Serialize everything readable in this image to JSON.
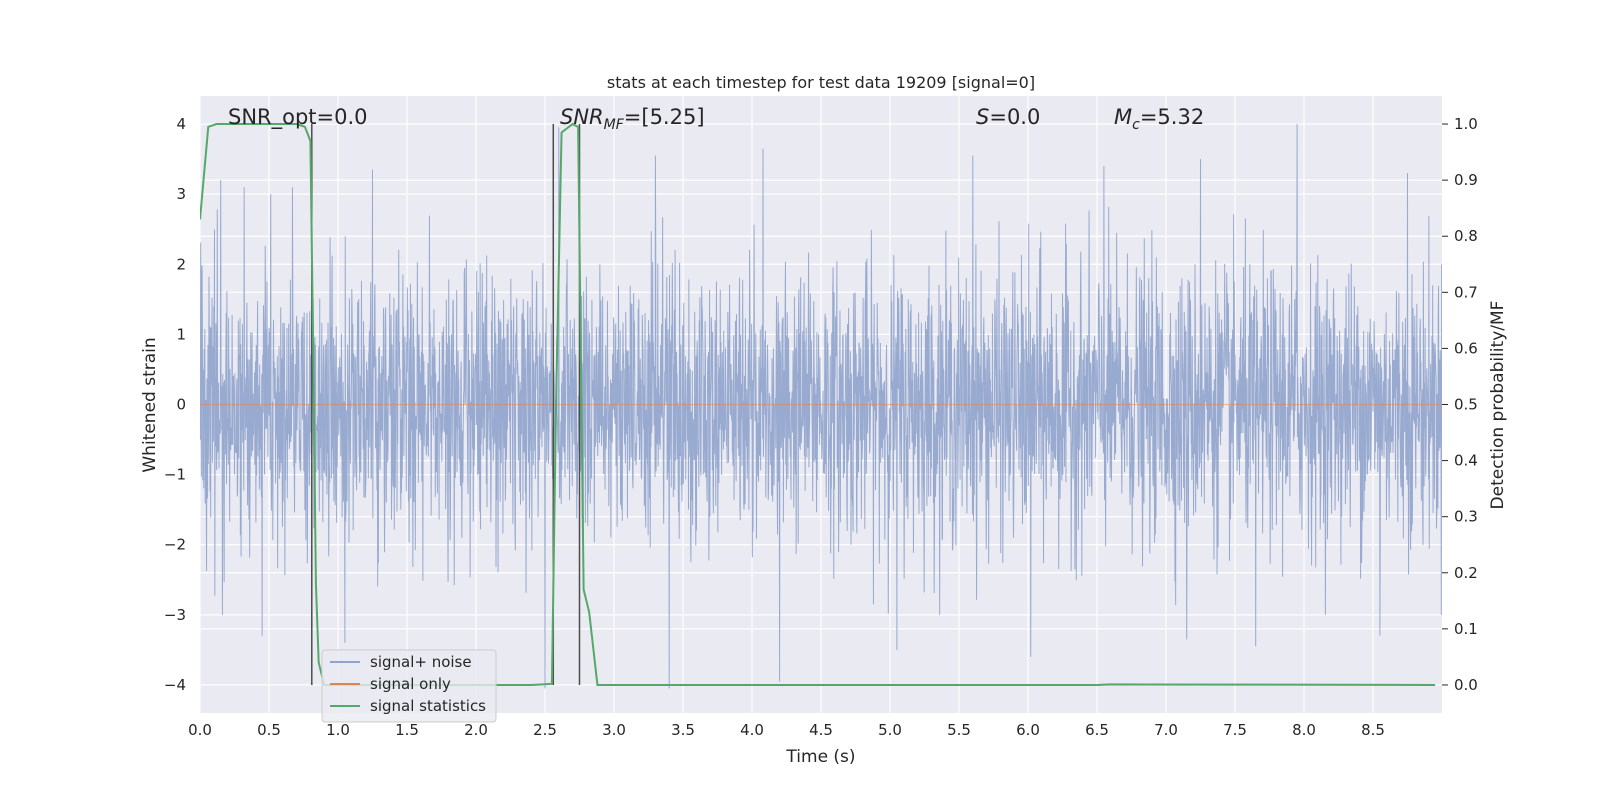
{
  "chart_data": {
    "type": "line",
    "title": "stats at each timestep for test data 19209 [signal=0]",
    "xlabel": "Time (s)",
    "ylabel": "Whitened strain",
    "y2label": "Detection probability/MF",
    "xlim": [
      0.0,
      9.0
    ],
    "ylim": [
      -4.4,
      4.4
    ],
    "y2lim": [
      -0.05,
      1.05
    ],
    "xticks": [
      "0.0",
      "0.5",
      "1.0",
      "1.5",
      "2.0",
      "2.5",
      "3.0",
      "3.5",
      "4.0",
      "4.5",
      "5.0",
      "5.5",
      "6.0",
      "6.5",
      "7.0",
      "7.5",
      "8.0",
      "8.5"
    ],
    "yticks": [
      "4",
      "3",
      "2",
      "1",
      "0",
      "−1",
      "−2",
      "−3",
      "−4"
    ],
    "y2ticks": [
      "1.0",
      "0.9",
      "0.8",
      "0.7",
      "0.6",
      "0.5",
      "0.4",
      "0.3",
      "0.2",
      "0.1",
      "0.0"
    ],
    "grid": true,
    "legend_position": "lower-left",
    "annotations": {
      "snr_opt": "SNR_opt=0.0",
      "snr_mf_main": "SNR",
      "snr_mf_sub": "MF",
      "snr_mf_value": "=[5.25]",
      "s_main": "S",
      "s_value": "=0.0",
      "mc_main": "M",
      "mc_sub": "c",
      "mc_value": "=5.32"
    },
    "series": [
      {
        "name": "signal+ noise",
        "color": "#8fa3cc",
        "description": "whitened strain noise, random, amplitude roughly within [-4, 4]",
        "typical_band": [
          -2.0,
          2.0
        ],
        "peaks": [
          {
            "x": 0.15,
            "y": 3.2
          },
          {
            "x": 0.32,
            "y": 3.1
          },
          {
            "x": 0.67,
            "y": 3.1
          },
          {
            "x": 1.25,
            "y": 3.35
          },
          {
            "x": 2.6,
            "y": 3.95
          },
          {
            "x": 3.3,
            "y": 3.55
          },
          {
            "x": 4.08,
            "y": 3.65
          },
          {
            "x": 5.6,
            "y": 3.55
          },
          {
            "x": 6.55,
            "y": 3.4
          },
          {
            "x": 7.25,
            "y": 3.5
          },
          {
            "x": 7.95,
            "y": 4.0
          },
          {
            "x": 8.75,
            "y": 3.3
          }
        ],
        "troughs": [
          {
            "x": 0.45,
            "y": -3.3
          },
          {
            "x": 1.05,
            "y": -3.4
          },
          {
            "x": 2.5,
            "y": -4.05
          },
          {
            "x": 3.4,
            "y": -4.05
          },
          {
            "x": 4.2,
            "y": -3.95
          },
          {
            "x": 5.05,
            "y": -3.5
          },
          {
            "x": 6.02,
            "y": -3.6
          },
          {
            "x": 7.15,
            "y": -3.35
          },
          {
            "x": 7.65,
            "y": -3.45
          },
          {
            "x": 8.55,
            "y": -3.3
          }
        ]
      },
      {
        "name": "signal only",
        "color": "#dd8452",
        "x": [
          0.0,
          9.0
        ],
        "y": [
          0.0,
          0.0
        ]
      },
      {
        "name": "signal statistics",
        "color": "#55a868",
        "axis": "right",
        "x": [
          0.0,
          0.06,
          0.12,
          0.3,
          0.5,
          0.7,
          0.76,
          0.8,
          0.82,
          0.84,
          0.86,
          0.9,
          1.0,
          2.4,
          2.55,
          2.58,
          2.62,
          2.7,
          2.74,
          2.78,
          2.82,
          2.88,
          3.0,
          6.5,
          6.6,
          8.95
        ],
        "y": [
          0.83,
          0.995,
          1.0,
          1.0,
          1.0,
          1.0,
          0.995,
          0.97,
          0.6,
          0.18,
          0.04,
          0.0,
          0.0,
          0.0,
          0.002,
          0.5,
          0.985,
          1.0,
          0.995,
          0.17,
          0.13,
          0.0,
          0.0,
          0.0,
          0.001,
          0.0
        ]
      }
    ],
    "vertical_markers_x": [
      0.81,
      2.56,
      2.75
    ]
  }
}
